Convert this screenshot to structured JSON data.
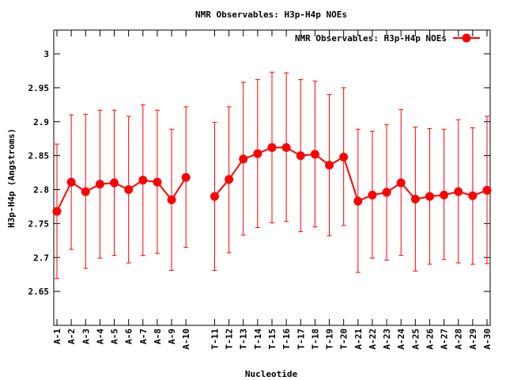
{
  "chart_data": {
    "type": "line",
    "title": "NMR Observables: H3p-H4p NOEs",
    "xlabel": "Nucleotide",
    "ylabel": "H3p-H4p (Angstroms)",
    "ylim": [
      2.6,
      3.035
    ],
    "yticks": [
      "2.65",
      "2.7",
      "2.75",
      "2.8",
      "2.85",
      "2.9",
      "2.95",
      "3"
    ],
    "grid": false,
    "legend": "top-right",
    "series_color": "#ff0000",
    "series": [
      {
        "name": "NMR Observables: H3p-H4p NOEs",
        "points": [
          {
            "label": "A-1",
            "pos": 1,
            "y": 2.768,
            "lo": 2.669,
            "hi": 2.867
          },
          {
            "label": "A-2",
            "pos": 2,
            "y": 2.811,
            "lo": 2.712,
            "hi": 2.91
          },
          {
            "label": "A-3",
            "pos": 3,
            "y": 2.797,
            "lo": 2.684,
            "hi": 2.911
          },
          {
            "label": "A-4",
            "pos": 4,
            "y": 2.808,
            "lo": 2.699,
            "hi": 2.917
          },
          {
            "label": "A-5",
            "pos": 5,
            "y": 2.81,
            "lo": 2.703,
            "hi": 2.917
          },
          {
            "label": "A-6",
            "pos": 6,
            "y": 2.8,
            "lo": 2.692,
            "hi": 2.908
          },
          {
            "label": "A-7",
            "pos": 7,
            "y": 2.814,
            "lo": 2.703,
            "hi": 2.925
          },
          {
            "label": "A-8",
            "pos": 8,
            "y": 2.811,
            "lo": 2.706,
            "hi": 2.917
          },
          {
            "label": "A-9",
            "pos": 9,
            "y": 2.785,
            "lo": 2.681,
            "hi": 2.889
          },
          {
            "label": "A-10",
            "pos": 10,
            "y": 2.818,
            "lo": 2.715,
            "hi": 2.922
          },
          {
            "label": "T-11",
            "pos": 12,
            "y": 2.79,
            "lo": 2.681,
            "hi": 2.899
          },
          {
            "label": "T-12",
            "pos": 13,
            "y": 2.815,
            "lo": 2.707,
            "hi": 2.922
          },
          {
            "label": "T-13",
            "pos": 14,
            "y": 2.845,
            "lo": 2.733,
            "hi": 2.958
          },
          {
            "label": "T-14",
            "pos": 15,
            "y": 2.853,
            "lo": 2.744,
            "hi": 2.962
          },
          {
            "label": "T-15",
            "pos": 16,
            "y": 2.862,
            "lo": 2.751,
            "hi": 2.973
          },
          {
            "label": "T-16",
            "pos": 17,
            "y": 2.862,
            "lo": 2.753,
            "hi": 2.972
          },
          {
            "label": "T-17",
            "pos": 18,
            "y": 2.85,
            "lo": 2.738,
            "hi": 2.962
          },
          {
            "label": "T-18",
            "pos": 19,
            "y": 2.852,
            "lo": 2.745,
            "hi": 2.96
          },
          {
            "label": "T-19",
            "pos": 20,
            "y": 2.836,
            "lo": 2.732,
            "hi": 2.94
          },
          {
            "label": "T-20",
            "pos": 21,
            "y": 2.848,
            "lo": 2.747,
            "hi": 2.95
          },
          {
            "label": "A-21",
            "pos": 22,
            "y": 2.783,
            "lo": 2.678,
            "hi": 2.889
          },
          {
            "label": "A-22",
            "pos": 23,
            "y": 2.792,
            "lo": 2.699,
            "hi": 2.886
          },
          {
            "label": "A-23",
            "pos": 24,
            "y": 2.796,
            "lo": 2.696,
            "hi": 2.896
          },
          {
            "label": "A-24",
            "pos": 25,
            "y": 2.81,
            "lo": 2.703,
            "hi": 2.918
          },
          {
            "label": "A-25",
            "pos": 26,
            "y": 2.786,
            "lo": 2.68,
            "hi": 2.892
          },
          {
            "label": "A-26",
            "pos": 27,
            "y": 2.79,
            "lo": 2.69,
            "hi": 2.89
          },
          {
            "label": "A-27",
            "pos": 28,
            "y": 2.792,
            "lo": 2.697,
            "hi": 2.889
          },
          {
            "label": "A-28",
            "pos": 29,
            "y": 2.797,
            "lo": 2.692,
            "hi": 2.903
          },
          {
            "label": "A-29",
            "pos": 30,
            "y": 2.791,
            "lo": 2.69,
            "hi": 2.891
          },
          {
            "label": "A-30",
            "pos": 31,
            "y": 2.799,
            "lo": 2.691,
            "hi": 2.908
          }
        ]
      }
    ]
  }
}
